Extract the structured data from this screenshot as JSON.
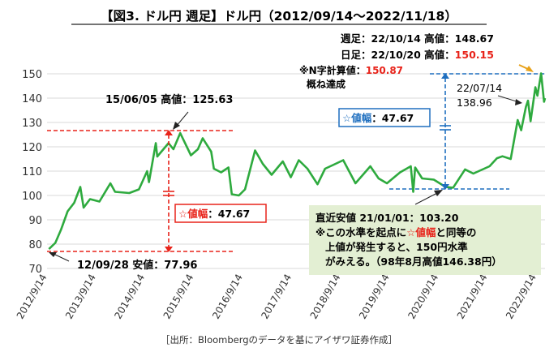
{
  "chart_data": {
    "type": "line",
    "title": "【図3. ドル円 週足】ドル円（2012/09/14～2022/11/18）",
    "xlabel": "",
    "ylabel": "",
    "ylim": [
      70,
      150
    ],
    "yticks": [
      70,
      80,
      90,
      100,
      110,
      120,
      130,
      140,
      150
    ],
    "xlim": [
      "2012-09-14",
      "2022-11-18"
    ],
    "xticks": [
      "2012/9/14",
      "2013/9/14",
      "2014/9/14",
      "2015/9/14",
      "2016/9/14",
      "2017/9/14",
      "2018/9/14",
      "2019/9/14",
      "2020/9/14",
      "2021/9/14",
      "2022/9/14"
    ],
    "grid": true,
    "line_color": "#2eaa3e",
    "series": [
      {
        "points": [
          [
            "2012-09-28",
            77.96
          ],
          [
            "2012-11-15",
            80.5
          ],
          [
            "2012-12-28",
            86.0
          ],
          [
            "2013-02-15",
            93.5
          ],
          [
            "2013-04-05",
            97.0
          ],
          [
            "2013-05-20",
            103.5
          ],
          [
            "2013-06-14",
            95.0
          ],
          [
            "2013-08-01",
            98.5
          ],
          [
            "2013-10-10",
            97.5
          ],
          [
            "2013-12-31",
            105.0
          ],
          [
            "2014-02-04",
            101.5
          ],
          [
            "2014-05-21",
            101.0
          ],
          [
            "2014-08-01",
            102.5
          ],
          [
            "2014-10-01",
            110.0
          ],
          [
            "2014-10-15",
            105.5
          ],
          [
            "2014-12-05",
            121.5
          ],
          [
            "2014-12-16",
            116.0
          ],
          [
            "2015-03-10",
            121.5
          ],
          [
            "2015-04-15",
            119.0
          ],
          [
            "2015-06-05",
            125.63
          ],
          [
            "2015-08-24",
            116.5
          ],
          [
            "2015-10-15",
            119.0
          ],
          [
            "2015-11-20",
            123.5
          ],
          [
            "2016-01-22",
            118.0
          ],
          [
            "2016-02-11",
            111.0
          ],
          [
            "2016-04-05",
            109.5
          ],
          [
            "2016-05-30",
            111.5
          ],
          [
            "2016-06-24",
            100.5
          ],
          [
            "2016-08-16",
            100.0
          ],
          [
            "2016-10-01",
            102.5
          ],
          [
            "2016-12-15",
            118.5
          ],
          [
            "2017-02-10",
            113.0
          ],
          [
            "2017-04-17",
            108.5
          ],
          [
            "2017-07-10",
            114.0
          ],
          [
            "2017-09-08",
            107.5
          ],
          [
            "2017-11-06",
            114.5
          ],
          [
            "2018-01-10",
            111.0
          ],
          [
            "2018-03-26",
            104.6
          ],
          [
            "2018-05-21",
            111.0
          ],
          [
            "2018-07-19",
            112.5
          ],
          [
            "2018-10-04",
            114.5
          ],
          [
            "2019-01-03",
            105.0
          ],
          [
            "2019-04-24",
            112.0
          ],
          [
            "2019-06-25",
            107.0
          ],
          [
            "2019-08-26",
            105.0
          ],
          [
            "2019-12-02",
            109.5
          ],
          [
            "2020-02-20",
            112.0
          ],
          [
            "2020-03-09",
            101.5
          ],
          [
            "2020-03-24",
            111.5
          ],
          [
            "2020-05-15",
            107.0
          ],
          [
            "2020-08-10",
            106.5
          ],
          [
            "2020-11-06",
            103.5
          ],
          [
            "2021-01-01",
            103.2
          ],
          [
            "2021-03-31",
            110.7
          ],
          [
            "2021-06-01",
            109.0
          ],
          [
            "2021-09-30",
            112.0
          ],
          [
            "2021-11-24",
            115.3
          ],
          [
            "2022-01-04",
            116.1
          ],
          [
            "2022-03-07",
            115.0
          ],
          [
            "2022-04-28",
            131.0
          ],
          [
            "2022-05-24",
            126.8
          ],
          [
            "2022-06-29",
            136.5
          ],
          [
            "2022-07-14",
            138.96
          ],
          [
            "2022-08-02",
            130.5
          ],
          [
            "2022-09-07",
            144.5
          ],
          [
            "2022-09-22",
            141.0
          ],
          [
            "2022-10-20",
            150.15
          ],
          [
            "2022-11-11",
            138.5
          ],
          [
            "2022-11-18",
            140.0
          ]
        ]
      }
    ],
    "annotations": {
      "weekly_high": {
        "label": "週足：22/10/14 高値：",
        "value": "148.67"
      },
      "daily_high": {
        "label": "日足：22/10/20 高値：",
        "value": "150.15"
      },
      "n_calc": {
        "line1_label": "※N字計算値：",
        "line1_value": "150.87",
        "line2": "概ね達成"
      },
      "point_0714": {
        "line1": "22/07/14",
        "line2": "138.96"
      },
      "high_150605": "15/06/05 高値：125.63",
      "low_120928": "12/09/28 安値：77.96",
      "range_left": "☆値幅：47.67",
      "range_right": "☆値幅：47.67",
      "note_box": {
        "line1": "直近安値 21/01/01：103.20",
        "line2": "※この水準を起点に☆値幅と同等の",
        "line3": "上値が発生すると、150円水準",
        "line4": "がみえる。（98年8月高値146.38円）"
      }
    },
    "source": "［出所：Bloombergのデータを基にアイザワ証券作成］"
  }
}
